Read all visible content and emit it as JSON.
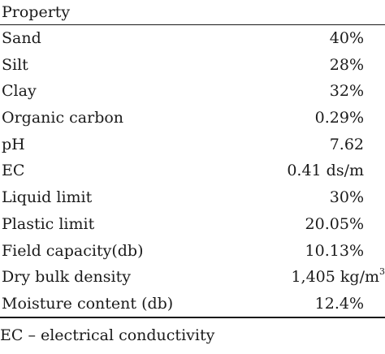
{
  "table": {
    "header": "Property",
    "rows": [
      {
        "property": "Sand",
        "value": "40%"
      },
      {
        "property": "Silt",
        "value": "28%"
      },
      {
        "property": "Clay",
        "value": "32%"
      },
      {
        "property": "Organic carbon",
        "value": "0.29%"
      },
      {
        "property": "pH",
        "value": "7.62"
      },
      {
        "property": "EC",
        "value": "0.41 ds/m"
      },
      {
        "property": "Liquid limit",
        "value": "30%"
      },
      {
        "property": "Plastic limit",
        "value": "20.05%"
      },
      {
        "property": "Field capacity(db)",
        "value": "10.13%"
      },
      {
        "property": "Dry bulk density",
        "value": "1,405 kg/m",
        "value_sup": "3"
      },
      {
        "property": "Moisture content (db)",
        "value": "12.4%"
      }
    ]
  },
  "footnote": "EC – electrical conductivity"
}
